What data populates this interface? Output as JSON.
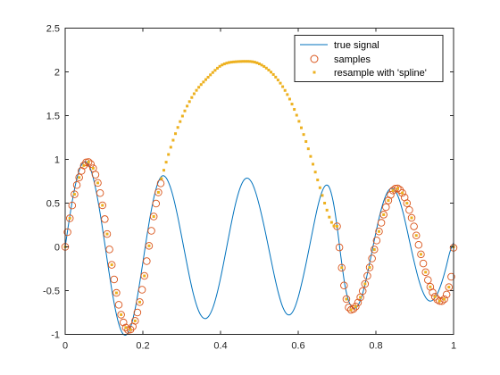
{
  "chart_data": {
    "type": "line",
    "title": "",
    "xlabel": "",
    "ylabel": "",
    "xlim": [
      0,
      1
    ],
    "ylim": [
      -1,
      2.5
    ],
    "grid": false,
    "legend_placement": "top-right",
    "x_ticks": [
      0,
      0.2,
      0.4,
      0.6,
      0.8,
      1
    ],
    "x_tick_labels": [
      "0",
      "0.2",
      "0.4",
      "0.6",
      "0.8",
      "1"
    ],
    "y_ticks": [
      -1,
      -0.5,
      0,
      0.5,
      1,
      1.5,
      2,
      2.5
    ],
    "y_tick_labels": [
      "-1",
      "-0.5",
      "0",
      "0.5",
      "1",
      "1.5",
      "2",
      "2.5"
    ],
    "series": [
      {
        "name": "true signal",
        "style": "line",
        "color": "#0072BD",
        "x": [
          0.0,
          0.01,
          0.02,
          0.03,
          0.04,
          0.05,
          0.06,
          0.07,
          0.08,
          0.09,
          0.1,
          0.11,
          0.12,
          0.13,
          0.14,
          0.15,
          0.16,
          0.17,
          0.18,
          0.19,
          0.2,
          0.21,
          0.22,
          0.23,
          0.24,
          0.25,
          0.26,
          0.27,
          0.28,
          0.29,
          0.3,
          0.31,
          0.32,
          0.33,
          0.34,
          0.35,
          0.36,
          0.37,
          0.38,
          0.39,
          0.4,
          0.41,
          0.42,
          0.43,
          0.44,
          0.45,
          0.46,
          0.47,
          0.48,
          0.49,
          0.5,
          0.51,
          0.52,
          0.53,
          0.54,
          0.55,
          0.56,
          0.57,
          0.58,
          0.59,
          0.6,
          0.61,
          0.62,
          0.63,
          0.64,
          0.65,
          0.66,
          0.67,
          0.68,
          0.69,
          0.7,
          0.71,
          0.72,
          0.73,
          0.74,
          0.75,
          0.76,
          0.77,
          0.78,
          0.79,
          0.8,
          0.81,
          0.82,
          0.83,
          0.84,
          0.85,
          0.86,
          0.87,
          0.88,
          0.89,
          0.9,
          0.91,
          0.92,
          0.93,
          0.94,
          0.95,
          0.96,
          0.97,
          0.98,
          0.99,
          1.0
        ],
        "y": [
          0.0,
          0.298,
          0.566,
          0.779,
          0.919,
          0.975,
          0.942,
          0.825,
          0.632,
          0.382,
          0.095,
          -0.205,
          -0.489,
          -0.732,
          -0.909,
          -1.0,
          -0.995,
          -0.896,
          -0.712,
          -0.463,
          -0.179,
          0.112,
          0.376,
          0.594,
          0.745,
          0.812,
          0.789,
          0.693,
          0.54,
          0.341,
          0.116,
          -0.115,
          -0.339,
          -0.537,
          -0.689,
          -0.786,
          -0.82,
          -0.79,
          -0.699,
          -0.551,
          -0.359,
          -0.138,
          0.093,
          0.318,
          0.516,
          0.669,
          0.762,
          0.785,
          0.738,
          0.629,
          0.471,
          0.281,
          0.071,
          -0.146,
          -0.358,
          -0.544,
          -0.686,
          -0.765,
          -0.772,
          -0.706,
          -0.575,
          -0.398,
          -0.195,
          0.025,
          0.248,
          0.455,
          0.615,
          0.7,
          0.68,
          0.519,
          0.235,
          -0.117,
          -0.431,
          -0.62,
          -0.694,
          -0.691,
          -0.612,
          -0.464,
          -0.268,
          -0.052,
          0.165,
          0.362,
          0.521,
          0.628,
          0.67,
          0.64,
          0.543,
          0.391,
          0.2,
          -0.003,
          -0.197,
          -0.371,
          -0.505,
          -0.59,
          -0.62,
          -0.594,
          -0.519,
          -0.4,
          -0.245,
          -0.066,
          0.05
        ]
      },
      {
        "name": "samples",
        "style": "circle",
        "color": "#D95319",
        "x": [
          0.0,
          0.006,
          0.012,
          0.018,
          0.024,
          0.03,
          0.036,
          0.042,
          0.048,
          0.054,
          0.06,
          0.066,
          0.072,
          0.078,
          0.084,
          0.09,
          0.096,
          0.102,
          0.108,
          0.114,
          0.12,
          0.126,
          0.132,
          0.138,
          0.144,
          0.15,
          0.156,
          0.162,
          0.168,
          0.174,
          0.18,
          0.186,
          0.192,
          0.198,
          0.204,
          0.21,
          0.216,
          0.222,
          0.228,
          0.234,
          0.24,
          0.246,
          0.7,
          0.706,
          0.712,
          0.718,
          0.724,
          0.73,
          0.736,
          0.742,
          0.748,
          0.754,
          0.76,
          0.766,
          0.772,
          0.778,
          0.784,
          0.79,
          0.796,
          0.802,
          0.808,
          0.814,
          0.82,
          0.826,
          0.832,
          0.838,
          0.844,
          0.85,
          0.856,
          0.862,
          0.868,
          0.874,
          0.88,
          0.886,
          0.892,
          0.898,
          0.904,
          0.91,
          0.916,
          0.922,
          0.928,
          0.934,
          0.94,
          0.946,
          0.952,
          0.958,
          0.964,
          0.97,
          0.976,
          0.982,
          0.988,
          0.994,
          1.0
        ],
        "y": [
          0.0,
          0.168,
          0.327,
          0.473,
          0.601,
          0.707,
          0.793,
          0.869,
          0.93,
          0.966,
          0.97,
          0.947,
          0.898,
          0.825,
          0.731,
          0.615,
          0.475,
          0.317,
          0.147,
          -0.029,
          -0.205,
          -0.372,
          -0.526,
          -0.662,
          -0.775,
          -0.864,
          -0.922,
          -0.95,
          -0.945,
          -0.911,
          -0.846,
          -0.75,
          -0.631,
          -0.49,
          -0.332,
          -0.163,
          0.012,
          0.184,
          0.347,
          0.495,
          0.623,
          0.726,
          0.235,
          -0.006,
          -0.238,
          -0.441,
          -0.597,
          -0.692,
          -0.72,
          -0.711,
          -0.682,
          -0.636,
          -0.576,
          -0.505,
          -0.423,
          -0.332,
          -0.235,
          -0.133,
          -0.03,
          0.073,
          0.176,
          0.275,
          0.368,
          0.454,
          0.53,
          0.595,
          0.644,
          0.666,
          0.668,
          0.651,
          0.616,
          0.565,
          0.499,
          0.421,
          0.332,
          0.234,
          0.13,
          0.023,
          -0.085,
          -0.19,
          -0.289,
          -0.379,
          -0.457,
          -0.521,
          -0.57,
          -0.602,
          -0.619,
          -0.62,
          -0.598,
          -0.545,
          -0.46,
          -0.342,
          -0.01
        ]
      },
      {
        "name": "resample with 'spline'",
        "style": "dot",
        "color": "#EDB120",
        "x": [
          0.0,
          0.012,
          0.024,
          0.036,
          0.048,
          0.06,
          0.072,
          0.084,
          0.096,
          0.108,
          0.12,
          0.132,
          0.144,
          0.156,
          0.168,
          0.18,
          0.192,
          0.204,
          0.216,
          0.228,
          0.24,
          0.248,
          0.254,
          0.26,
          0.266,
          0.272,
          0.278,
          0.284,
          0.29,
          0.296,
          0.302,
          0.308,
          0.314,
          0.32,
          0.326,
          0.332,
          0.338,
          0.344,
          0.35,
          0.356,
          0.362,
          0.368,
          0.374,
          0.38,
          0.386,
          0.392,
          0.398,
          0.404,
          0.41,
          0.416,
          0.422,
          0.428,
          0.434,
          0.44,
          0.446,
          0.452,
          0.458,
          0.464,
          0.47,
          0.476,
          0.482,
          0.488,
          0.494,
          0.5,
          0.506,
          0.512,
          0.518,
          0.524,
          0.53,
          0.536,
          0.542,
          0.548,
          0.554,
          0.56,
          0.566,
          0.572,
          0.578,
          0.584,
          0.59,
          0.596,
          0.602,
          0.608,
          0.614,
          0.62,
          0.626,
          0.632,
          0.638,
          0.644,
          0.65,
          0.656,
          0.662,
          0.668,
          0.674,
          0.68,
          0.686,
          0.692,
          0.7,
          0.712,
          0.724,
          0.736,
          0.748,
          0.76,
          0.772,
          0.784,
          0.796,
          0.808,
          0.82,
          0.832,
          0.844,
          0.856,
          0.868,
          0.88,
          0.892,
          0.904,
          0.916,
          0.928,
          0.94,
          0.952,
          0.964,
          0.976,
          0.988,
          1.0
        ],
        "y": [
          0.0,
          0.327,
          0.601,
          0.793,
          0.93,
          0.97,
          0.898,
          0.731,
          0.475,
          0.147,
          -0.205,
          -0.526,
          -0.775,
          -0.922,
          -0.945,
          -0.846,
          -0.631,
          -0.332,
          0.012,
          0.347,
          0.623,
          0.78,
          0.876,
          0.968,
          1.056,
          1.139,
          1.219,
          1.294,
          1.365,
          1.432,
          1.495,
          1.554,
          1.609,
          1.66,
          1.707,
          1.75,
          1.789,
          1.824,
          1.855,
          1.884,
          1.912,
          1.939,
          1.966,
          1.993,
          2.018,
          2.042,
          2.063,
          2.079,
          2.091,
          2.1,
          2.107,
          2.111,
          2.114,
          2.116,
          2.118,
          2.119,
          2.12,
          2.12,
          2.12,
          2.119,
          2.116,
          2.111,
          2.103,
          2.092,
          2.078,
          2.062,
          2.043,
          2.021,
          1.997,
          1.97,
          1.94,
          1.907,
          1.871,
          1.831,
          1.788,
          1.741,
          1.689,
          1.632,
          1.571,
          1.505,
          1.435,
          1.361,
          1.284,
          1.204,
          1.121,
          1.034,
          0.945,
          0.855,
          0.765,
          0.676,
          0.588,
          0.5,
          0.42,
          0.34,
          0.28,
          0.24,
          0.235,
          -0.238,
          -0.597,
          -0.72,
          -0.682,
          -0.576,
          -0.423,
          -0.235,
          -0.03,
          0.176,
          0.368,
          0.53,
          0.644,
          0.668,
          0.616,
          0.499,
          0.332,
          0.13,
          -0.085,
          -0.289,
          -0.457,
          -0.57,
          -0.619,
          -0.598,
          -0.46,
          0.0
        ]
      }
    ]
  }
}
